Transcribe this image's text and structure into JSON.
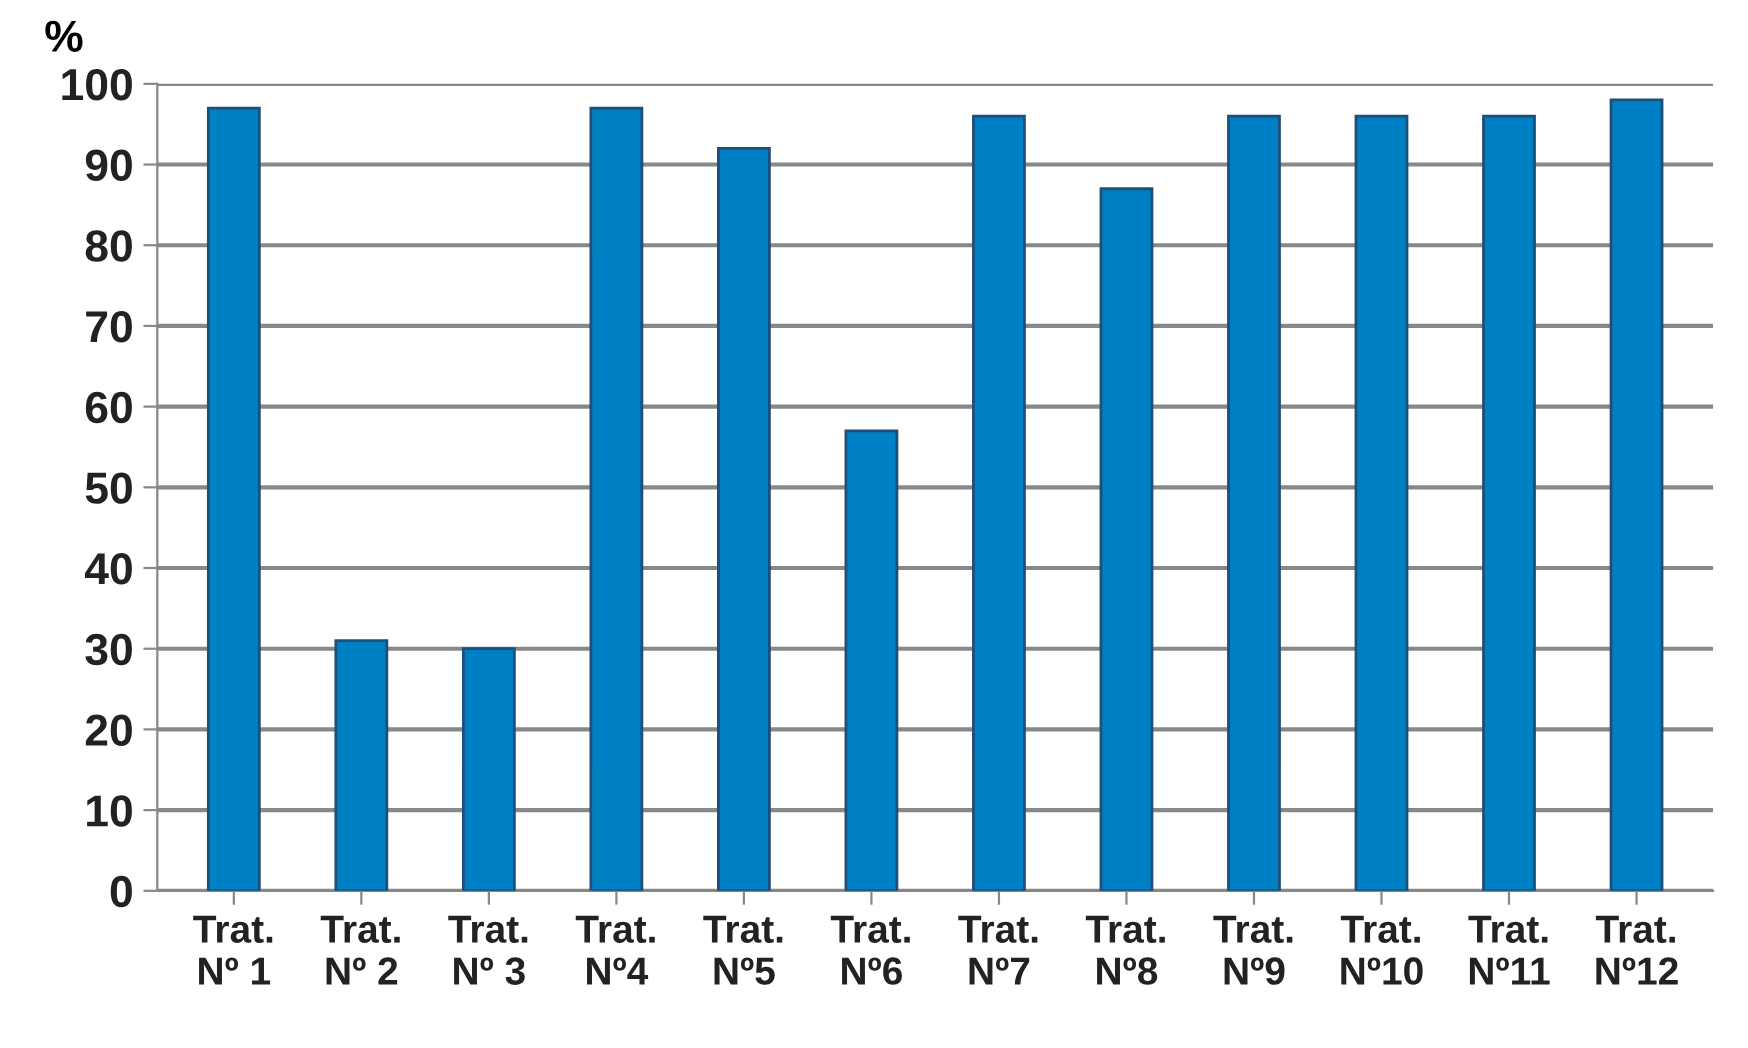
{
  "chart_data": {
    "type": "bar",
    "ylabel": "%",
    "categories": [
      "Trat.\nNº 1",
      "Trat.\nNº 2",
      "Trat.\nNº 3",
      "Trat.\nNº4",
      "Trat.\nNº5",
      "Trat.\nNº6",
      "Trat.\nNº7",
      "Trat.\nNº8",
      "Trat.\nNº9",
      "Trat.\nNº10",
      "Trat.\nNº11",
      "Trat.\nNº12"
    ],
    "values": [
      97,
      31,
      30,
      97,
      92,
      57,
      96,
      87,
      96,
      96,
      96,
      98
    ],
    "color": "#0080c4",
    "ylim": [
      0,
      100
    ],
    "yticks": [
      0,
      10,
      20,
      30,
      40,
      50,
      60,
      70,
      80,
      90,
      100
    ],
    "grid": "y"
  }
}
